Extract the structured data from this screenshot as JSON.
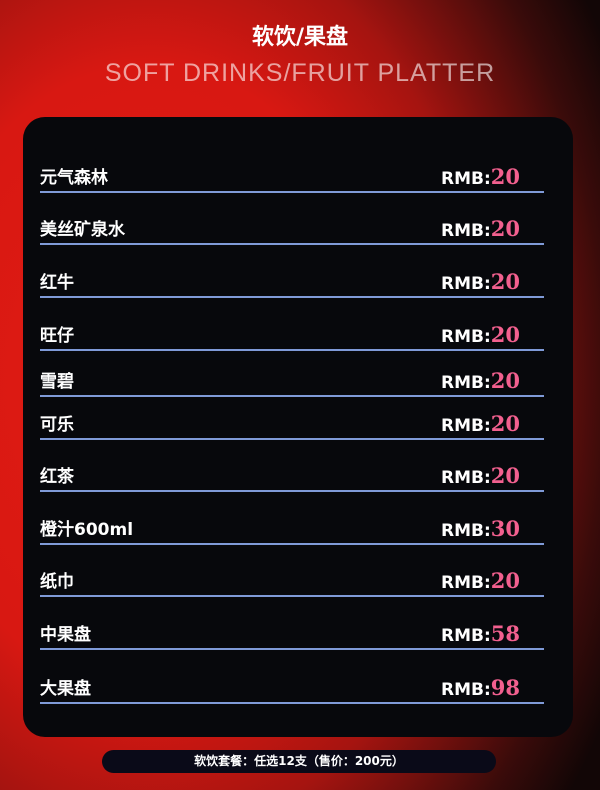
{
  "header": {
    "subtitle": "SOFT DRINKS/FRUIT PLATTER",
    "title": "软饮/果盘"
  },
  "items": [
    {
      "name": "元气森林",
      "prefix": "RMB:",
      "price": "20"
    },
    {
      "name": "美丝矿泉水",
      "prefix": "RMB:",
      "price": "20"
    },
    {
      "name": "红牛",
      "prefix": "RMB:",
      "price": "20"
    },
    {
      "name": "旺仔",
      "prefix": "RMB:",
      "price": "20"
    },
    {
      "name": "雪碧",
      "prefix": "RMB:",
      "price": "20"
    },
    {
      "name": "可乐",
      "prefix": "RMB:",
      "price": "20"
    },
    {
      "name": "红茶",
      "prefix": "RMB:",
      "price": "20"
    },
    {
      "name": "橙汁600ml",
      "prefix": "RMB:",
      "price": "30"
    },
    {
      "name": "纸巾",
      "prefix": "RMB:",
      "price": "20"
    },
    {
      "name": "中果盘",
      "prefix": "RMB:",
      "price": "58"
    },
    {
      "name": "大果盘",
      "prefix": "RMB:",
      "price": "98"
    }
  ],
  "footer": {
    "text": "软饮套餐：任选12支（售价：200元）"
  },
  "colors": {
    "accent": "#f2608f",
    "divider": "#7f9ad8",
    "background": "#d81812"
  }
}
